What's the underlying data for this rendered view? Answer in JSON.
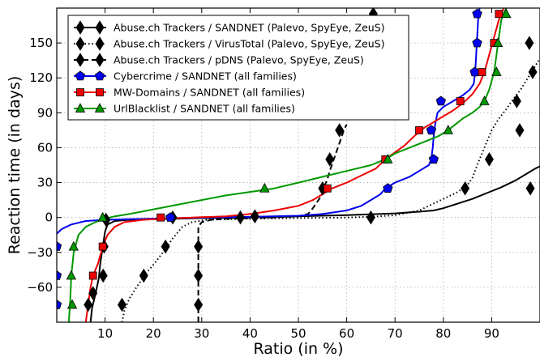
{
  "chart_data": {
    "type": "line",
    "title": "",
    "xlabel": "Ratio (in %)",
    "ylabel": "Reaction time (in days)",
    "xlim": [
      0,
      100
    ],
    "ylim": [
      -90,
      180
    ],
    "xticks": [
      10,
      20,
      30,
      40,
      50,
      60,
      70,
      80,
      90
    ],
    "yticks": [
      -60,
      -30,
      0,
      30,
      60,
      90,
      120,
      150
    ],
    "grid": true,
    "legend_position": "top-left",
    "series": [
      {
        "name": "Abuse.ch Trackers / SANDNET (Palevo, SpyEye, ZeuS)",
        "color": "#000000",
        "dash": "solid",
        "marker": "thin-diamond",
        "points": [
          [
            7,
            -90
          ],
          [
            7.3,
            -78
          ],
          [
            8,
            -66
          ],
          [
            8.7,
            -52
          ],
          [
            9,
            -40
          ],
          [
            9.5,
            -26
          ],
          [
            10,
            -12
          ],
          [
            10.5,
            -6
          ],
          [
            12,
            -3
          ],
          [
            15,
            -2
          ],
          [
            20,
            -1.5
          ],
          [
            25,
            -1
          ],
          [
            30,
            -0.5
          ],
          [
            40,
            0
          ],
          [
            50,
            1
          ],
          [
            60,
            2
          ],
          [
            70,
            3.5
          ],
          [
            75,
            5
          ],
          [
            78,
            6
          ],
          [
            80,
            8
          ],
          [
            83,
            12
          ],
          [
            86,
            16
          ],
          [
            89,
            21
          ],
          [
            92,
            26
          ],
          [
            95,
            32
          ],
          [
            97,
            37
          ],
          [
            99,
            42
          ],
          [
            100,
            44
          ]
        ],
        "markers": [
          [
            6.5,
            -75
          ],
          [
            7.5,
            -65
          ],
          [
            9.6,
            -50
          ],
          [
            9.8,
            -25
          ],
          [
            10.2,
            -2
          ],
          [
            24,
            0
          ],
          [
            38,
            0
          ],
          [
            41,
            1
          ],
          [
            98,
            25
          ]
        ]
      },
      {
        "name": "Abuse.ch Trackers / VirusTotal (Palevo, SpyEye, ZeuS)",
        "color": "#000000",
        "dash": "dotted",
        "marker": "thin-diamond",
        "points": [
          [
            13.5,
            -90
          ],
          [
            14,
            -80
          ],
          [
            15,
            -70
          ],
          [
            16.5,
            -60
          ],
          [
            18.5,
            -48
          ],
          [
            20.5,
            -38
          ],
          [
            22.5,
            -27
          ],
          [
            24,
            -18
          ],
          [
            26,
            -8
          ],
          [
            28,
            -4
          ],
          [
            31,
            -2
          ],
          [
            40,
            -1
          ],
          [
            50,
            -0.5
          ],
          [
            60,
            0
          ],
          [
            65,
            0.5
          ],
          [
            70,
            2
          ],
          [
            75,
            6
          ],
          [
            78,
            12
          ],
          [
            80,
            16
          ],
          [
            83,
            22
          ],
          [
            85,
            28
          ],
          [
            86,
            34
          ],
          [
            87,
            45
          ],
          [
            88,
            55
          ],
          [
            89,
            65
          ],
          [
            90,
            75
          ],
          [
            91.5,
            85
          ],
          [
            93,
            93
          ],
          [
            94.5,
            102
          ],
          [
            96,
            110
          ],
          [
            97.5,
            120
          ],
          [
            99,
            130
          ],
          [
            100,
            137
          ]
        ],
        "markers": [
          [
            13.5,
            -75
          ],
          [
            18,
            -50
          ],
          [
            22.5,
            -25
          ],
          [
            65,
            0
          ],
          [
            84.5,
            25
          ],
          [
            89.5,
            50
          ],
          [
            95.8,
            75
          ],
          [
            95.2,
            100
          ],
          [
            98.5,
            125
          ],
          [
            97.8,
            150
          ]
        ]
      },
      {
        "name": "Abuse.ch Trackers / pDNS (Palevo, SpyEye, ZeuS)",
        "color": "#000000",
        "dash": "dashed",
        "marker": "thin-diamond",
        "points": [
          [
            29.3,
            -90
          ],
          [
            29.3,
            -8
          ],
          [
            30,
            -4
          ],
          [
            32,
            -2
          ],
          [
            36,
            -1
          ],
          [
            45,
            0
          ],
          [
            50,
            1
          ],
          [
            52,
            3
          ],
          [
            53,
            8
          ],
          [
            54,
            14
          ],
          [
            55,
            20
          ],
          [
            55.5,
            28
          ],
          [
            56,
            33
          ],
          [
            56.5,
            40
          ],
          [
            57,
            46
          ],
          [
            57.5,
            52
          ],
          [
            58,
            58
          ],
          [
            58.5,
            64
          ],
          [
            59,
            70
          ],
          [
            59.5,
            76
          ],
          [
            60,
            80
          ]
        ],
        "markers": [
          [
            29.3,
            -75
          ],
          [
            29.3,
            -50
          ],
          [
            29.3,
            -25
          ],
          [
            55,
            25
          ],
          [
            56.5,
            50
          ],
          [
            58.5,
            75
          ],
          [
            65.5,
            175
          ]
        ]
      },
      {
        "name": "Cybercrime / SANDNET (all families)",
        "color": "#0000ee",
        "dash": "solid",
        "marker": "pentagon",
        "points": [
          [
            0,
            -14
          ],
          [
            1,
            -10
          ],
          [
            3,
            -6
          ],
          [
            6,
            -3
          ],
          [
            10,
            -2
          ],
          [
            15,
            -1.5
          ],
          [
            20,
            -1
          ],
          [
            30,
            0
          ],
          [
            40,
            0.5
          ],
          [
            50,
            1.5
          ],
          [
            55,
            3
          ],
          [
            60,
            6
          ],
          [
            63,
            10
          ],
          [
            65,
            15
          ],
          [
            67,
            20
          ],
          [
            68,
            25
          ],
          [
            70,
            30
          ],
          [
            73,
            35
          ],
          [
            75,
            40
          ],
          [
            77,
            45
          ],
          [
            77.5,
            50
          ],
          [
            77.8,
            60
          ],
          [
            78,
            70
          ],
          [
            78.3,
            80
          ],
          [
            78.8,
            90
          ],
          [
            80,
            95
          ],
          [
            82,
            100
          ],
          [
            84,
            105
          ],
          [
            85.5,
            110
          ],
          [
            86.3,
            115
          ],
          [
            86.6,
            125
          ],
          [
            86.8,
            140
          ],
          [
            87,
            155
          ],
          [
            87.2,
            170
          ],
          [
            87.5,
            180
          ]
        ],
        "markers": [
          [
            0,
            -25
          ],
          [
            0,
            -50
          ],
          [
            0,
            -75
          ],
          [
            23.5,
            0
          ],
          [
            68.5,
            25
          ],
          [
            78,
            50
          ],
          [
            77.5,
            75
          ],
          [
            79.5,
            100
          ],
          [
            86.5,
            125
          ],
          [
            87,
            150
          ],
          [
            87,
            175
          ]
        ]
      },
      {
        "name": "MW-Domains / SANDNET (all families)",
        "color": "#ee0000",
        "dash": "solid",
        "marker": "square",
        "points": [
          [
            6,
            -90
          ],
          [
            6.5,
            -75
          ],
          [
            7,
            -60
          ],
          [
            7.5,
            -50
          ],
          [
            8.5,
            -40
          ],
          [
            9.5,
            -25
          ],
          [
            10.5,
            -15
          ],
          [
            12,
            -8
          ],
          [
            14,
            -4
          ],
          [
            18,
            -2
          ],
          [
            22,
            -1
          ],
          [
            28,
            0
          ],
          [
            35,
            1
          ],
          [
            40,
            3
          ],
          [
            45,
            6
          ],
          [
            50,
            10
          ],
          [
            53,
            15
          ],
          [
            55,
            20
          ],
          [
            57,
            25
          ],
          [
            60,
            30
          ],
          [
            63,
            36
          ],
          [
            66,
            42
          ],
          [
            68,
            50
          ],
          [
            70,
            56
          ],
          [
            72,
            62
          ],
          [
            74,
            70
          ],
          [
            76,
            77
          ],
          [
            78,
            82
          ],
          [
            80,
            87
          ],
          [
            82,
            92
          ],
          [
            84,
            98
          ],
          [
            86,
            106
          ],
          [
            87.5,
            115
          ],
          [
            88.5,
            125
          ],
          [
            89.5,
            140
          ],
          [
            90.5,
            155
          ],
          [
            91.5,
            170
          ],
          [
            92.5,
            180
          ]
        ],
        "markers": [
          [
            9.5,
            -25
          ],
          [
            7.5,
            -50
          ],
          [
            21.5,
            0
          ],
          [
            56,
            25
          ],
          [
            68,
            50
          ],
          [
            75,
            75
          ],
          [
            83.5,
            100
          ],
          [
            88,
            125
          ],
          [
            90.5,
            150
          ],
          [
            91.5,
            175
          ]
        ]
      },
      {
        "name": "UrlBlacklist / SANDNET (all families)",
        "color": "#009900",
        "dash": "solid",
        "marker": "triangle",
        "points": [
          [
            2.5,
            -90
          ],
          [
            2.8,
            -70
          ],
          [
            3,
            -50
          ],
          [
            3.5,
            -30
          ],
          [
            4.5,
            -15
          ],
          [
            6,
            -8
          ],
          [
            8,
            -4
          ],
          [
            10,
            -1
          ],
          [
            12,
            1
          ],
          [
            15,
            3
          ],
          [
            20,
            7
          ],
          [
            25,
            11
          ],
          [
            30,
            15
          ],
          [
            35,
            19
          ],
          [
            40,
            22
          ],
          [
            45,
            25
          ],
          [
            50,
            30
          ],
          [
            55,
            35
          ],
          [
            60,
            40
          ],
          [
            65,
            45
          ],
          [
            68,
            50
          ],
          [
            70,
            55
          ],
          [
            73,
            60
          ],
          [
            76,
            65
          ],
          [
            79,
            70
          ],
          [
            81,
            75
          ],
          [
            82.5,
            80
          ],
          [
            84,
            85
          ],
          [
            86,
            90
          ],
          [
            87.5,
            95
          ],
          [
            88.5,
            100
          ],
          [
            89.5,
            110
          ],
          [
            90.5,
            125
          ],
          [
            91,
            140
          ],
          [
            91.5,
            155
          ],
          [
            92,
            170
          ],
          [
            93,
            180
          ]
        ],
        "markers": [
          [
            3.5,
            -25
          ],
          [
            3,
            -50
          ],
          [
            3.2,
            -75
          ],
          [
            9.5,
            0
          ],
          [
            43,
            25
          ],
          [
            68.5,
            50
          ],
          [
            81,
            75
          ],
          [
            88.5,
            100
          ],
          [
            91,
            125
          ],
          [
            91.3,
            150
          ],
          [
            93,
            175
          ]
        ]
      }
    ]
  }
}
